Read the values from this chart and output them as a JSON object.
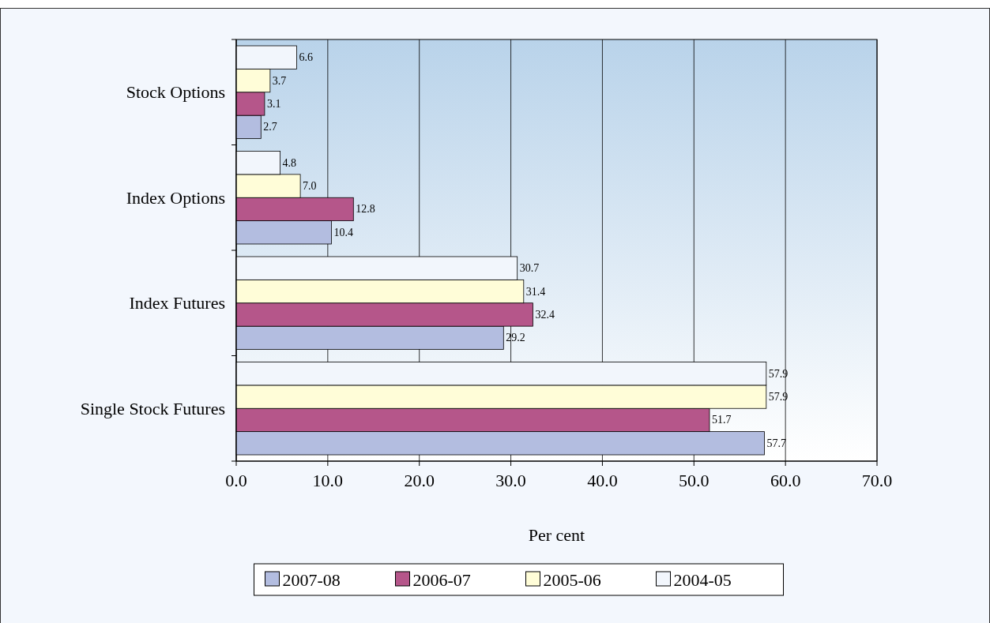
{
  "chart_data": {
    "type": "bar",
    "orientation": "horizontal",
    "xlabel": "Per cent",
    "categories": [
      "Stock Options",
      "Index Options",
      "Index Futures",
      "Single Stock Futures"
    ],
    "series": [
      {
        "name": "2007-08",
        "color": "#b3bde0",
        "values": [
          2.7,
          10.4,
          29.2,
          57.7
        ],
        "value_labels": [
          "2.7",
          "10.4",
          "29.2",
          "57.7"
        ]
      },
      {
        "name": "2006-07",
        "color": "#b5568a",
        "values": [
          3.1,
          12.8,
          32.4,
          51.7
        ],
        "value_labels": [
          "3.1",
          "12.8",
          "32.4",
          "51.7"
        ]
      },
      {
        "name": "2005-06",
        "color": "#fffdd8",
        "values": [
          3.7,
          7.0,
          31.4,
          57.9
        ],
        "value_labels": [
          "3.7",
          "7.0",
          "31.4",
          "57.9"
        ]
      },
      {
        "name": "2004-05",
        "color": "#f2f6fc",
        "values": [
          6.6,
          4.8,
          30.7,
          57.9
        ],
        "value_labels": [
          "6.6",
          "4.8",
          "30.7",
          "57.9"
        ]
      }
    ],
    "xlim": [
      0,
      70
    ],
    "xticks": [
      {
        "value": 0,
        "label": "0.0"
      },
      {
        "value": 10,
        "label": "10.0"
      },
      {
        "value": 20,
        "label": "20.0"
      },
      {
        "value": 30,
        "label": "30.0"
      },
      {
        "value": 40,
        "label": "40.0"
      },
      {
        "value": 50,
        "label": "50.0"
      },
      {
        "value": 60,
        "label": "60.0"
      },
      {
        "value": 70,
        "label": "70.0"
      }
    ],
    "grid": "x",
    "legend": "bottom"
  }
}
